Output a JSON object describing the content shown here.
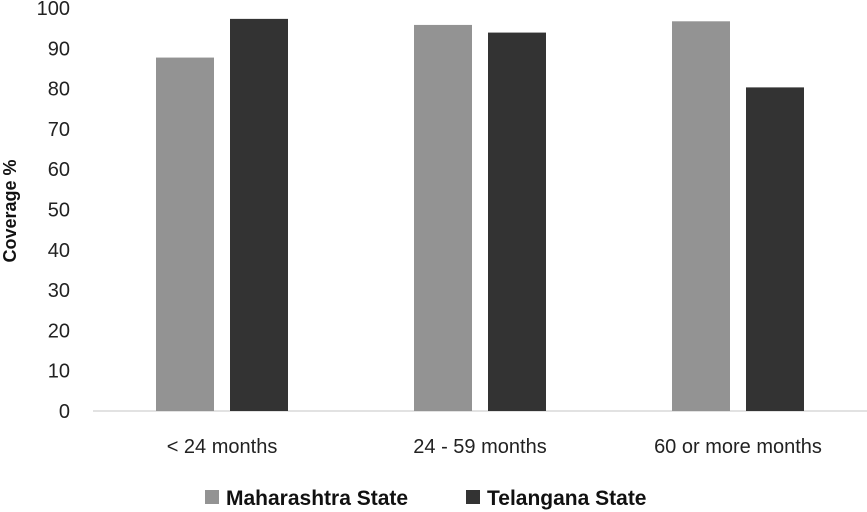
{
  "chart_data": {
    "type": "bar",
    "title": "",
    "xlabel": "",
    "ylabel": "Coverage %",
    "ylim": [
      0,
      100
    ],
    "yticks": [
      0,
      10,
      20,
      30,
      40,
      50,
      60,
      70,
      80,
      90,
      100
    ],
    "categories": [
      "< 24 months",
      "24 - 59 months",
      "60 or more months"
    ],
    "series": [
      {
        "name": "Maharashtra State",
        "color": "#939393",
        "values": [
          87.7,
          95.8,
          96.7
        ]
      },
      {
        "name": "Telangana State",
        "color": "#333333",
        "values": [
          97.3,
          93.9,
          80.3
        ]
      }
    ],
    "grid": false,
    "legend": "bottom-center"
  }
}
